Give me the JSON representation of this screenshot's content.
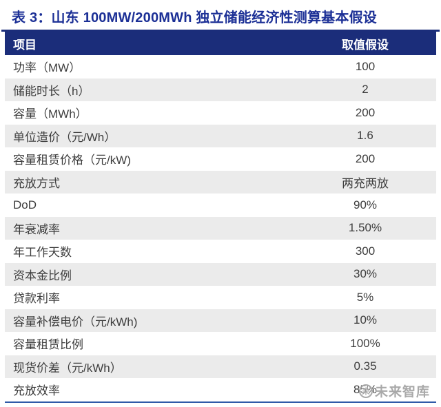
{
  "title": "表 3：山东 100MW/200MWh 独立储能经济性测算基本假设",
  "table": {
    "headers": [
      "项目",
      "取值假设"
    ],
    "rows": [
      {
        "item": "功率（MW）",
        "value": "100"
      },
      {
        "item": "储能时长（h）",
        "value": "2"
      },
      {
        "item": "容量（MWh）",
        "value": "200"
      },
      {
        "item": "单位造价（元/Wh）",
        "value": "1.6"
      },
      {
        "item": "容量租赁价格（元/kW)",
        "value": "200"
      },
      {
        "item": "充放方式",
        "value": "两充两放"
      },
      {
        "item": "DoD",
        "value": "90%"
      },
      {
        "item": "年衰减率",
        "value": "1.50%"
      },
      {
        "item": "年工作天数",
        "value": "300"
      },
      {
        "item": "资本金比例",
        "value": "30%"
      },
      {
        "item": "贷款利率",
        "value": "5%"
      },
      {
        "item": "容量补偿电价（元/kWh)",
        "value": "10%"
      },
      {
        "item": "容量租赁比例",
        "value": "100%"
      },
      {
        "item": "现货价差（元/kWh）",
        "value": "0.35"
      },
      {
        "item": "充放效率",
        "value": "85%"
      }
    ]
  },
  "watermark": {
    "logo_glyph": "未",
    "text": "未来智库"
  },
  "colors": {
    "title_text": "#1c3096",
    "header_bg": "#1b2d7a",
    "header_text": "#ffffff",
    "row_text": "#3d3d3d",
    "zebra_row_bg": "#ebebeb",
    "top_divider": "#1b2d7a",
    "bottom_rule": "#2f5aa8",
    "watermark_gray": "#a5a5a5"
  }
}
